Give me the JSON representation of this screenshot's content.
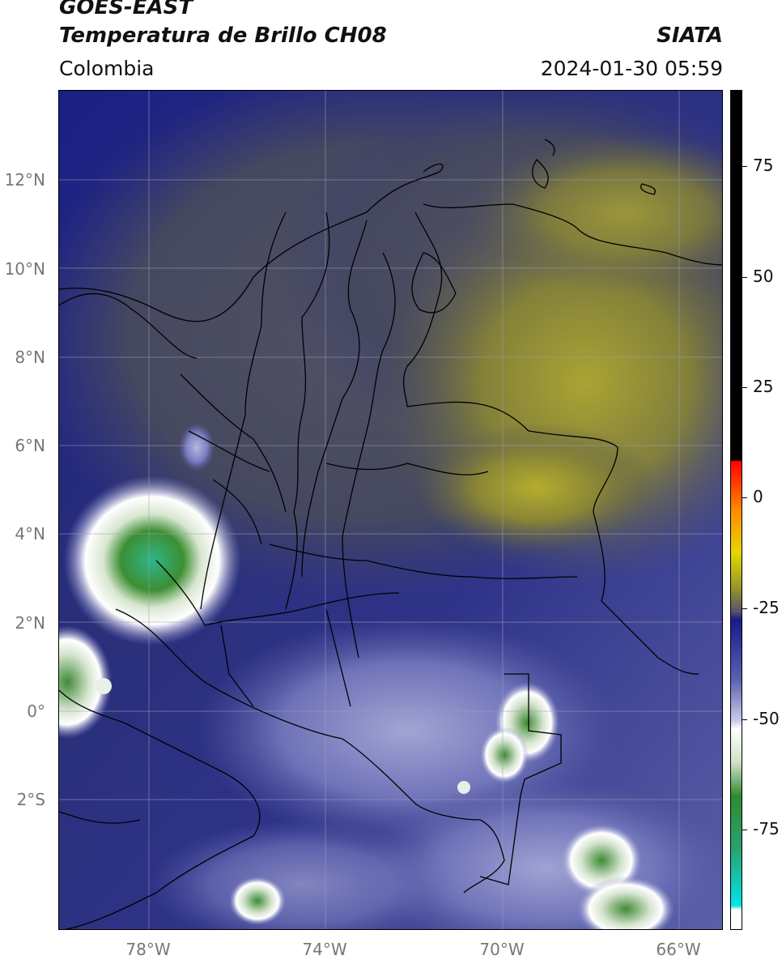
{
  "header": {
    "satellite": "GOES-EAST",
    "product": "Temperatura de Brillo CH08",
    "region": "Colombia",
    "org": "SIATA",
    "datetime": "2024-01-30 05:59"
  },
  "map": {
    "lat_labels": [
      "12°N",
      "10°N",
      "8°N",
      "6°N",
      "4°N",
      "2°N",
      "0°",
      "2°S"
    ],
    "lon_labels": [
      "78°W",
      "74°W",
      "70°W",
      "66°W"
    ],
    "lat_range": [
      -5,
      14
    ],
    "lon_range": [
      -80,
      -65
    ]
  },
  "colorbar": {
    "ticks": [
      "75",
      "50",
      "25",
      "0",
      "-25",
      "-50",
      "-75"
    ],
    "range": [
      -95,
      90
    ],
    "colors": {
      "cold": "#00e5e5",
      "green": "#2e8b2e",
      "white": "#ffffff",
      "blue": "#1a1a8c",
      "gray": "#4a4a5a",
      "olive": "#8b8b2a",
      "yellow": "#e6e600",
      "orange": "#ff8c00",
      "red": "#ff0000",
      "black": "#000000"
    }
  }
}
